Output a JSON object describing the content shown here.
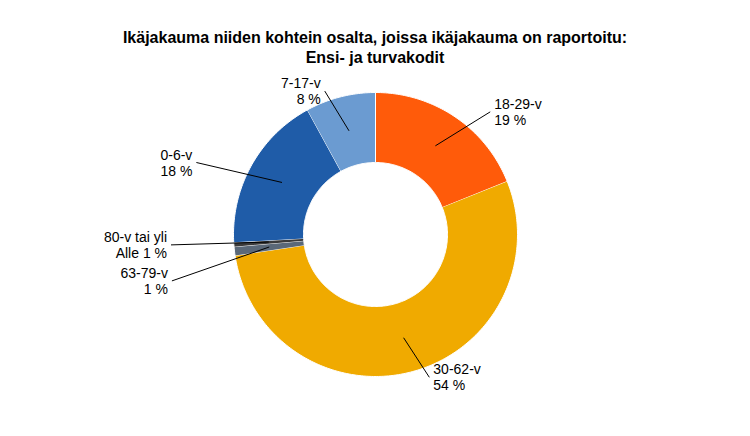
{
  "chart_data": {
    "type": "donut",
    "title": "Ikäjakauma niiden kohtein osalta, joissa ikäjakauma on raportoitu:",
    "subtitle": "Ensi- ja turvakodit",
    "categories": [
      "18-29-v",
      "30-62-v",
      "63-79-v",
      "80-v tai yli",
      "0-6-v",
      "7-17-v"
    ],
    "values": [
      19,
      54,
      1,
      0.5,
      18,
      8
    ],
    "value_labels": [
      "19 %",
      "54 %",
      "1 %",
      "Alle 1 %",
      "18 %",
      "8 %"
    ],
    "colors": [
      "#FF5B0A",
      "#F0AA00",
      "#5A6878",
      "#3A3A3A",
      "#1F5CA8",
      "#6B9BD1"
    ],
    "data_labels": true
  }
}
